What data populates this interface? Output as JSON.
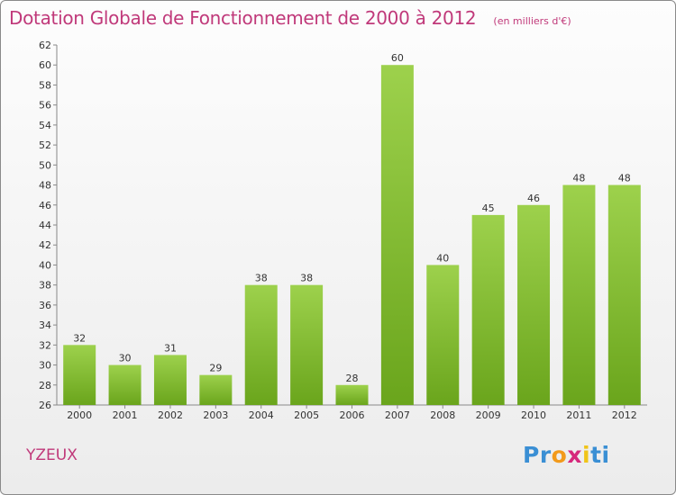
{
  "chart_data": {
    "type": "bar",
    "title": "Dotation Globale de Fonctionnement de 2000 à 2012",
    "subtitle": "(en milliers d'€)",
    "categories": [
      "2000",
      "2001",
      "2002",
      "2003",
      "2004",
      "2005",
      "2006",
      "2007",
      "2008",
      "2009",
      "2010",
      "2011",
      "2012"
    ],
    "values": [
      32,
      30,
      31,
      29,
      38,
      38,
      28,
      60,
      40,
      45,
      46,
      48,
      48
    ],
    "ylim": [
      26,
      62
    ],
    "yticks": [
      26,
      28,
      30,
      32,
      34,
      36,
      38,
      40,
      42,
      44,
      46,
      48,
      50,
      52,
      54,
      56,
      58,
      60,
      62
    ],
    "bar_color_light": "#9dd14c",
    "bar_color_dark": "#6aa51c",
    "grid": false,
    "legend": "none"
  },
  "commune": "YZEUX",
  "logo": {
    "letters": [
      "P",
      "r",
      "o",
      "x",
      "i",
      "t",
      "i"
    ],
    "colors": [
      "#3a8fd4",
      "#3a8fd4",
      "#f29a1b",
      "#d6287c",
      "#f0c419",
      "#3a8fd4",
      "#3a8fd4"
    ]
  },
  "colors": {
    "accent": "#c0397a"
  }
}
